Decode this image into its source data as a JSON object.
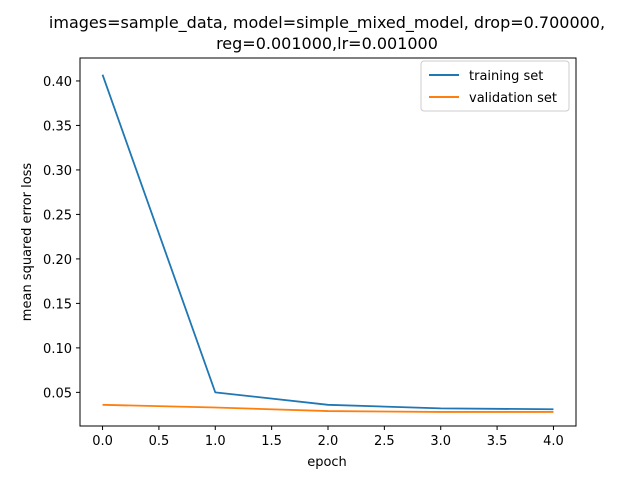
{
  "chart_data": {
    "type": "line",
    "title_lines": [
      "images=sample_data, model=simple_mixed_model, drop=0.700000,",
      "reg=0.001000,lr=0.001000"
    ],
    "xlabel": "epoch",
    "ylabel": "mean squared error loss",
    "x": [
      0,
      1,
      2,
      3,
      4
    ],
    "series": [
      {
        "name": "training set",
        "color": "#1f77b4",
        "values": [
          0.407,
          0.05,
          0.036,
          0.032,
          0.031
        ]
      },
      {
        "name": "validation set",
        "color": "#ff7f0e",
        "values": [
          0.036,
          0.033,
          0.029,
          0.028,
          0.028
        ]
      }
    ],
    "xlim": [
      -0.2,
      4.2
    ],
    "ylim": [
      0.0122,
      0.4258
    ],
    "xticks": [
      0.0,
      0.5,
      1.0,
      1.5,
      2.0,
      2.5,
      3.0,
      3.5,
      4.0
    ],
    "xtick_labels": [
      "0.0",
      "0.5",
      "1.0",
      "1.5",
      "2.0",
      "2.5",
      "3.0",
      "3.5",
      "4.0"
    ],
    "yticks": [
      0.05,
      0.1,
      0.15,
      0.2,
      0.25,
      0.3,
      0.35,
      0.4
    ],
    "ytick_labels": [
      "0.05",
      "0.10",
      "0.15",
      "0.20",
      "0.25",
      "0.30",
      "0.35",
      "0.40"
    ],
    "grid": false,
    "legend": "top-right"
  }
}
